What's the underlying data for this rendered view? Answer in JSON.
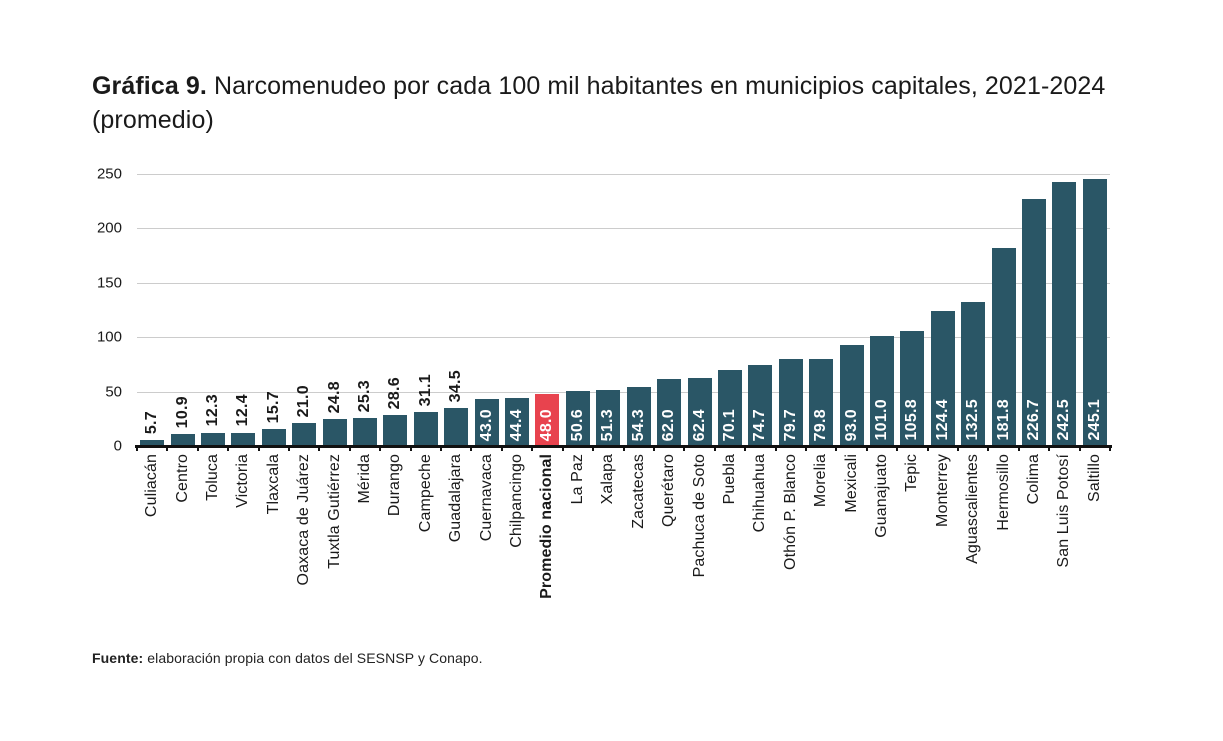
{
  "title": {
    "bold": "Gráfica 9.",
    "text": " Narcomenudeo por cada 100 mil habitantes en municipios capitales, 2021-2024 (promedio)"
  },
  "source": {
    "bold": "Fuente:",
    "text": " elaboración propia con datos del SESNSP y Conapo."
  },
  "chart_data": {
    "type": "bar",
    "title": "Gráfica 9. Narcomenudeo por cada 100 mil habitantes en municipios capitales, 2021-2024 (promedio)",
    "xlabel": "",
    "ylabel": "",
    "ylim": [
      0,
      250
    ],
    "y_ticks": [
      0,
      50,
      100,
      150,
      200,
      250
    ],
    "grid": true,
    "legend": "none",
    "categories": [
      "Culiacán",
      "Centro",
      "Toluca",
      "Victoria",
      "Tlaxcala",
      "Oaxaca de Juárez",
      "Tuxtla Gutiérrez",
      "Mérida",
      "Durango",
      "Campeche",
      "Guadalajara",
      "Cuernavaca",
      "Chilpancingo",
      "Promedio nacional",
      "La Paz",
      "Xalapa",
      "Zacatecas",
      "Querétaro",
      "Pachuca de Soto",
      "Puebla",
      "Chihuahua",
      "Othón P. Blanco",
      "Morelia",
      "Mexicali",
      "Guanajuato",
      "Tepic",
      "Monterrey",
      "Aguascalientes",
      "Hermosillo",
      "Colima",
      "San Luis Potosí",
      "Saltillo"
    ],
    "values": [
      5.7,
      10.9,
      12.3,
      12.4,
      15.7,
      21.0,
      24.8,
      25.3,
      28.6,
      31.1,
      34.5,
      43.0,
      44.4,
      48.0,
      50.6,
      51.3,
      54.3,
      62.0,
      62.4,
      70.1,
      74.7,
      79.7,
      79.8,
      93.0,
      101.0,
      105.8,
      124.4,
      132.5,
      181.8,
      226.7,
      242.5,
      245.1
    ],
    "highlight_index": 13,
    "highlight_label": "Promedio nacional",
    "colors": {
      "bar": "#2a5666",
      "highlight_bar": "#e8434e",
      "value_label_inside": "#ffffff",
      "value_label_outside": "#1a1a1a",
      "gridline": "#cccccc",
      "axis": "#111111"
    },
    "value_label_inside_threshold": 40
  }
}
